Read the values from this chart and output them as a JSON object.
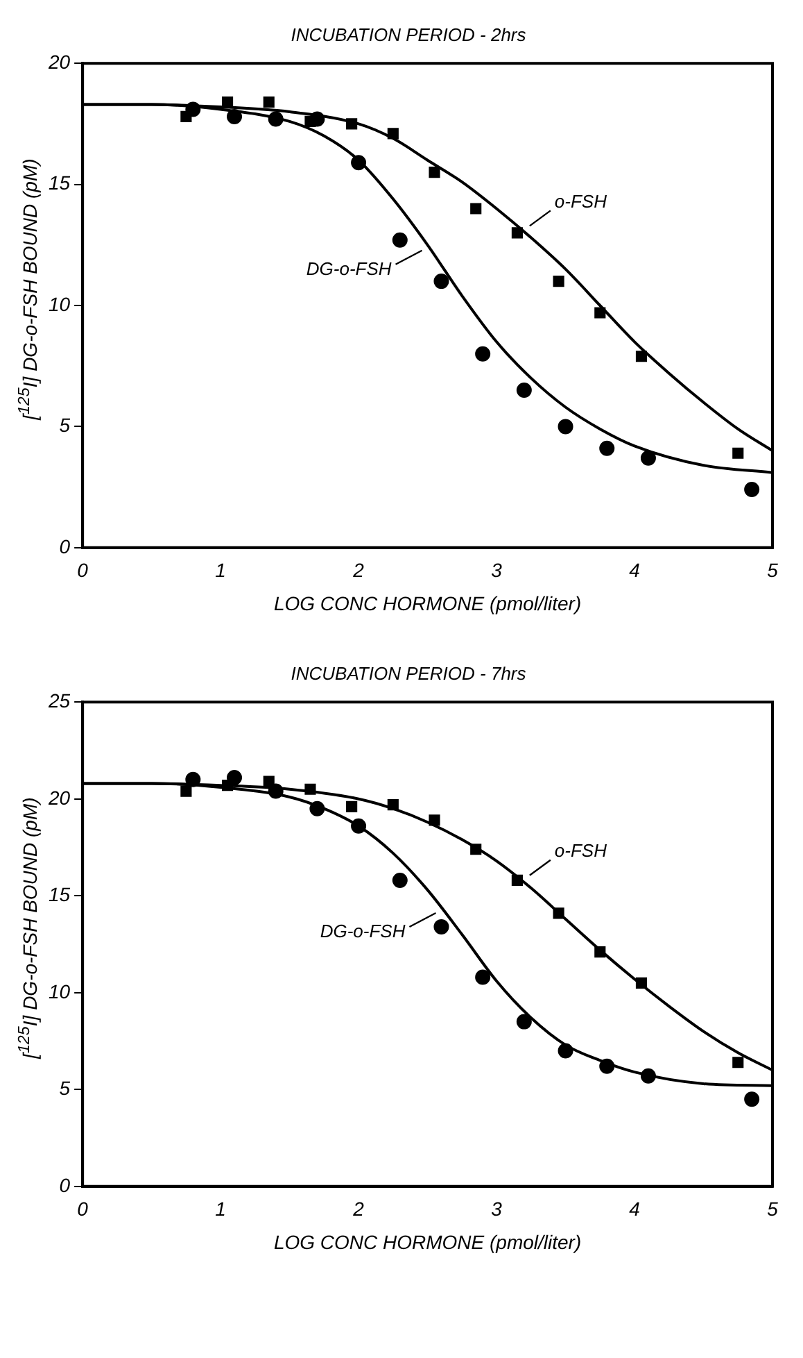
{
  "chart_data": [
    {
      "type": "scatter",
      "title": "INCUBATION PERIOD - 2hrs",
      "xlabel": "LOG CONC HORMONE (pmol/liter)",
      "ylabel": "[$^{125}$I] DG-o-FSH BOUND (pM)",
      "xlim": [
        0,
        5
      ],
      "xticks": [
        0,
        1,
        2,
        3,
        4,
        5
      ],
      "ylim": [
        0,
        20
      ],
      "yticks": [
        0,
        5,
        10,
        15,
        20
      ],
      "grid": false,
      "legend": false,
      "annotations": [
        {
          "text": "o-FSH",
          "x": 3.2,
          "y": 13.0
        },
        {
          "text": "DG-o-FSH",
          "x": 2.5,
          "y": 12.5
        }
      ],
      "series": [
        {
          "type": "scatter",
          "marker": "square",
          "color": "#000000",
          "x": [
            0.75,
            1.05,
            1.35,
            1.65,
            1.95,
            2.25,
            2.55,
            2.85,
            3.15,
            3.45,
            3.75,
            4.05,
            4.75
          ],
          "values": [
            17.8,
            18.4,
            18.4,
            17.6,
            17.5,
            17.1,
            15.5,
            14.0,
            13.0,
            11.0,
            9.7,
            7.9,
            3.9
          ]
        },
        {
          "type": "scatter",
          "marker": "circle",
          "color": "#000000",
          "x": [
            0.8,
            1.1,
            1.4,
            1.7,
            2.0,
            2.3,
            2.6,
            2.9,
            3.2,
            3.5,
            3.8,
            4.1,
            4.85
          ],
          "values": [
            18.1,
            17.8,
            17.7,
            17.7,
            15.9,
            12.7,
            11.0,
            8.0,
            6.5,
            5.0,
            4.1,
            3.7,
            2.4
          ]
        },
        {
          "type": "line",
          "color": "#000000",
          "x": [
            0,
            0.5,
            1,
            1.5,
            2,
            2.25,
            2.5,
            2.75,
            3,
            3.25,
            3.5,
            3.75,
            4,
            4.25,
            4.5,
            4.75,
            5
          ],
          "values": [
            18.3,
            18.3,
            18.2,
            18.0,
            17.5,
            16.9,
            16.0,
            15.1,
            14.0,
            12.8,
            11.5,
            10.0,
            8.5,
            7.2,
            6.0,
            4.9,
            4.0
          ]
        },
        {
          "type": "line",
          "color": "#000000",
          "x": [
            0,
            0.5,
            1,
            1.5,
            1.75,
            2,
            2.25,
            2.5,
            2.75,
            3,
            3.25,
            3.5,
            3.75,
            4,
            4.5,
            5
          ],
          "values": [
            18.3,
            18.3,
            18.1,
            17.6,
            17.0,
            16.0,
            14.4,
            12.5,
            10.4,
            8.5,
            7.0,
            5.8,
            4.9,
            4.2,
            3.4,
            3.1
          ]
        }
      ]
    },
    {
      "type": "scatter",
      "title": "INCUBATION PERIOD - 7hrs",
      "xlabel": "LOG CONC HORMONE (pmol/liter)",
      "ylabel": "[$^{125}$I] DG-o-FSH BOUND (pM)",
      "xlim": [
        0,
        5
      ],
      "xticks": [
        0,
        1,
        2,
        3,
        4,
        5
      ],
      "ylim": [
        0,
        25
      ],
      "yticks": [
        0,
        5,
        10,
        15,
        20,
        25
      ],
      "grid": false,
      "legend": false,
      "annotations": [
        {
          "text": "o-FSH",
          "x": 3.2,
          "y": 15.7
        },
        {
          "text": "DG-o-FSH",
          "x": 2.6,
          "y": 14.4
        }
      ],
      "series": [
        {
          "type": "scatter",
          "marker": "square",
          "color": "#000000",
          "x": [
            0.75,
            1.05,
            1.35,
            1.65,
            1.95,
            2.25,
            2.55,
            2.85,
            3.15,
            3.45,
            3.75,
            4.05,
            4.75
          ],
          "values": [
            20.4,
            20.7,
            20.9,
            20.5,
            19.6,
            19.7,
            18.9,
            17.4,
            15.8,
            14.1,
            12.1,
            10.5,
            6.4
          ]
        },
        {
          "type": "scatter",
          "marker": "circle",
          "color": "#000000",
          "x": [
            0.8,
            1.1,
            1.4,
            1.7,
            2.0,
            2.3,
            2.6,
            2.9,
            3.2,
            3.5,
            3.8,
            4.1,
            4.85
          ],
          "values": [
            21.0,
            21.1,
            20.4,
            19.5,
            18.6,
            15.8,
            13.4,
            10.8,
            8.5,
            7.0,
            6.2,
            5.7,
            4.5
          ]
        },
        {
          "type": "line",
          "color": "#000000",
          "x": [
            0,
            0.5,
            1,
            1.5,
            2,
            2.25,
            2.5,
            2.75,
            3,
            3.25,
            3.5,
            3.75,
            4,
            4.25,
            4.5,
            4.75,
            5
          ],
          "values": [
            20.8,
            20.8,
            20.7,
            20.5,
            20.0,
            19.5,
            18.8,
            17.9,
            16.8,
            15.4,
            13.8,
            12.2,
            10.7,
            9.3,
            8.0,
            6.9,
            6.0
          ]
        },
        {
          "type": "line",
          "color": "#000000",
          "x": [
            0,
            0.5,
            1,
            1.5,
            1.75,
            2,
            2.25,
            2.5,
            2.75,
            3,
            3.25,
            3.5,
            3.75,
            4,
            4.5,
            5
          ],
          "values": [
            20.8,
            20.8,
            20.6,
            20.1,
            19.5,
            18.6,
            17.2,
            15.3,
            13.0,
            10.6,
            8.7,
            7.3,
            6.5,
            5.9,
            5.3,
            5.2
          ]
        }
      ]
    }
  ]
}
